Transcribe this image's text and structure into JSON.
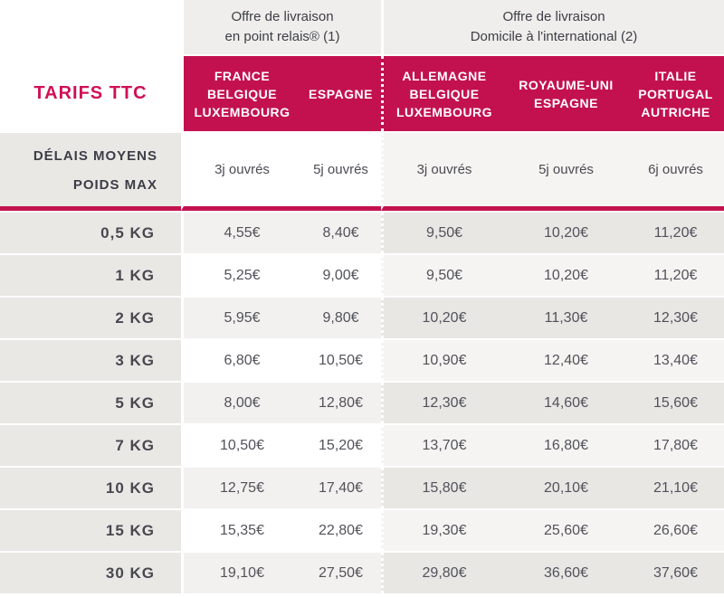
{
  "colors": {
    "accent": "#c3114f",
    "title": "#d00f56",
    "group_header_bg": "#efeeec",
    "label_column_bg": "#e9e8e5"
  },
  "table_title": "TARIFS TTC",
  "groups": [
    {
      "title": "Offre de livraison\nen point relais® (1)"
    },
    {
      "title": "Offre de livraison\nDomicile à l'international (2)"
    }
  ],
  "columns": [
    {
      "group": 1,
      "label": "FRANCE\nBELGIQUE\nLUXEMBOURG",
      "delay": "3j ouvrés"
    },
    {
      "group": 1,
      "label": "ESPAGNE",
      "delay": "5j ouvrés"
    },
    {
      "group": 2,
      "label": "ALLEMAGNE\nBELGIQUE\nLUXEMBOURG",
      "delay": "3j ouvrés"
    },
    {
      "group": 2,
      "label": "ROYAUME-UNI\nESPAGNE",
      "delay": "5j ouvrés"
    },
    {
      "group": 2,
      "label": "ITALIE\nPORTUGAL\nAUTRICHE",
      "delay": "6j ouvrés"
    }
  ],
  "row_header": {
    "line1": "DÉLAIS MOYENS",
    "line2": "POIDS MAX"
  },
  "rows": [
    {
      "weight": "0,5 KG",
      "prices": [
        "4,55€",
        "8,40€",
        "9,50€",
        "10,20€",
        "11,20€"
      ]
    },
    {
      "weight": "1 KG",
      "prices": [
        "5,25€",
        "9,00€",
        "9,50€",
        "10,20€",
        "11,20€"
      ]
    },
    {
      "weight": "2 KG",
      "prices": [
        "5,95€",
        "9,80€",
        "10,20€",
        "11,30€",
        "12,30€"
      ]
    },
    {
      "weight": "3 KG",
      "prices": [
        "6,80€",
        "10,50€",
        "10,90€",
        "12,40€",
        "13,40€"
      ]
    },
    {
      "weight": "5 KG",
      "prices": [
        "8,00€",
        "12,80€",
        "12,30€",
        "14,60€",
        "15,60€"
      ]
    },
    {
      "weight": "7 KG",
      "prices": [
        "10,50€",
        "15,20€",
        "13,70€",
        "16,80€",
        "17,80€"
      ]
    },
    {
      "weight": "10 KG",
      "prices": [
        "12,75€",
        "17,40€",
        "15,80€",
        "20,10€",
        "21,10€"
      ]
    },
    {
      "weight": "15 KG",
      "prices": [
        "15,35€",
        "22,80€",
        "19,30€",
        "25,60€",
        "26,60€"
      ]
    },
    {
      "weight": "30 KG",
      "prices": [
        "19,10€",
        "27,50€",
        "29,80€",
        "36,60€",
        "37,60€"
      ]
    }
  ]
}
